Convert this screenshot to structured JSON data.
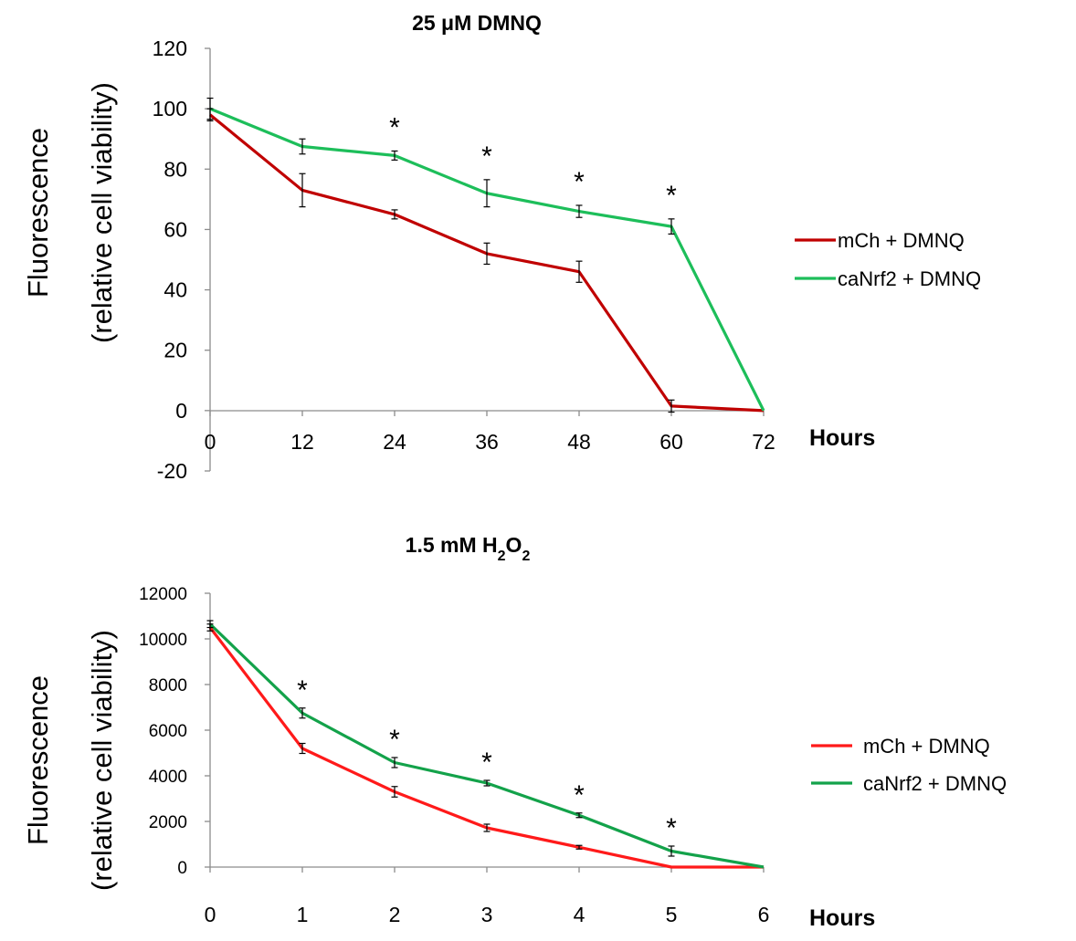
{
  "chart_data": [
    {
      "type": "line",
      "title": "25 μM DMNQ",
      "xlabel": "Hours",
      "ylabel": [
        "Fluorescence",
        "(relative cell viability)"
      ],
      "x": [
        0,
        12,
        24,
        36,
        48,
        60,
        72
      ],
      "xticks": [
        "0",
        "12",
        "24",
        "36",
        "48",
        "60",
        "72"
      ],
      "ylim": [
        -20,
        120
      ],
      "yticks": [
        "-20",
        "0",
        "20",
        "40",
        "60",
        "80",
        "100",
        "120"
      ],
      "legend_position": "right",
      "grid": false,
      "series": [
        {
          "name": "mCh + DMNQ",
          "color": "#c00000",
          "values": [
            98,
            73,
            65,
            52,
            46,
            1.5,
            0
          ],
          "errors": [
            2,
            5.5,
            1.5,
            3.5,
            3.5,
            2,
            0
          ]
        },
        {
          "name": "caNrf2 + DMNQ",
          "color": "#1dbe5a",
          "values": [
            100,
            87.5,
            84.5,
            72,
            66,
            61,
            0
          ],
          "errors": [
            3.5,
            2.5,
            1.5,
            4.5,
            2,
            2.5,
            0
          ]
        }
      ],
      "significance": {
        "label": "*",
        "x": [
          24,
          36,
          48,
          60
        ]
      }
    },
    {
      "type": "line",
      "title": "1.5 mM H2O2",
      "xlabel": "Hours",
      "ylabel": [
        "Fluorescence",
        "(relative cell viability)"
      ],
      "x": [
        0,
        1,
        2,
        3,
        4,
        5,
        6
      ],
      "xticks": [
        "0",
        "1",
        "2",
        "3",
        "4",
        "5",
        "6"
      ],
      "ylim": [
        0,
        12000
      ],
      "yticks": [
        "0",
        "2000",
        "4000",
        "6000",
        "8000",
        "10000",
        "12000"
      ],
      "legend_position": "right",
      "grid": false,
      "series": [
        {
          "name": "mCh + DMNQ",
          "color": "#ff1a1a",
          "values": [
            10500,
            5200,
            3300,
            1720,
            870,
            0,
            0
          ],
          "errors": [
            150,
            220,
            230,
            160,
            80,
            0,
            0
          ]
        },
        {
          "name": "caNrf2 + DMNQ",
          "color": "#13a24a",
          "values": [
            10650,
            6750,
            4580,
            3680,
            2270,
            700,
            0
          ],
          "errors": [
            150,
            220,
            220,
            120,
            100,
            220,
            0
          ]
        }
      ],
      "significance": {
        "label": "*",
        "x": [
          1,
          2,
          3,
          4,
          5
        ]
      }
    }
  ]
}
